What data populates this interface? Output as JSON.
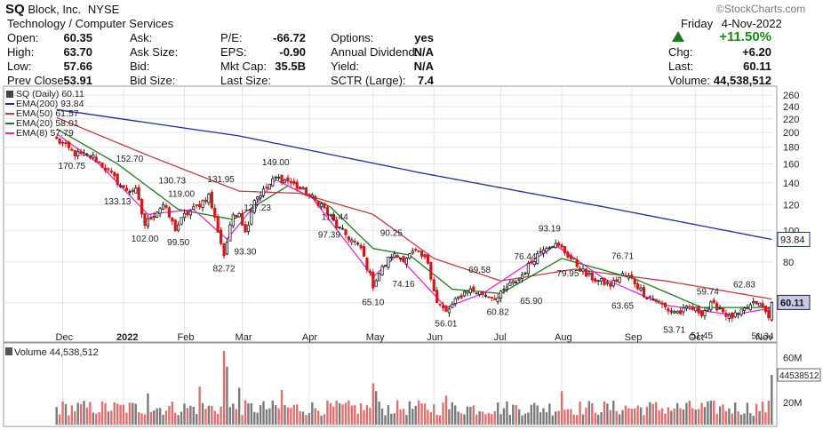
{
  "header": {
    "ticker": "SQ",
    "company": "Block, Inc.",
    "exchange": "NYSE",
    "sector": "Technology / Computer Services",
    "day": "Friday",
    "date": "4-Nov-2022",
    "logo": "©StockCharts.com",
    "change_pct": "+11.50%",
    "change_arrow": "up-arrow-icon",
    "fields": [
      {
        "label": "Open:",
        "value": "60.35"
      },
      {
        "label": "High:",
        "value": "63.70"
      },
      {
        "label": "Low:",
        "value": "57.66"
      },
      {
        "label": "Prev Close:",
        "value": "53.91"
      },
      {
        "label": "Ask:",
        "value": ""
      },
      {
        "label": "Ask Size:",
        "value": ""
      },
      {
        "label": "Bid:",
        "value": ""
      },
      {
        "label": "Bid Size:",
        "value": ""
      },
      {
        "label": "P/E:",
        "value": "-66.72"
      },
      {
        "label": "EPS:",
        "value": "-0.90"
      },
      {
        "label": "Mkt Cap:",
        "value": "35.5B"
      },
      {
        "label": "Last Size:",
        "value": ""
      },
      {
        "label": "Options:",
        "value": "yes"
      },
      {
        "label": "Annual Dividend:",
        "value": "N/A"
      },
      {
        "label": "Yield:",
        "value": "N/A"
      },
      {
        "label": "SCTR (Large):",
        "value": "7.4"
      },
      {
        "label": "Chg:",
        "value": "+6.20"
      },
      {
        "label": "Last:",
        "value": "60.11"
      },
      {
        "label": "Volume:",
        "value": "44,538,512"
      }
    ]
  },
  "colors": {
    "up": "#1a1a1a",
    "down": "#d01a1a",
    "ema200": "#1f2a9e",
    "ema50": "#c23a48",
    "ema20": "#1f7a1f",
    "ema8": "#e02ad0",
    "volume_up": "#7a7a7a",
    "volume_down": "#e07070",
    "last_box": "#c8c8e8",
    "grid": "#e4e4e4"
  },
  "chart_data": {
    "type": "candlestick",
    "scale": "log",
    "price_legend": [
      {
        "key": "price",
        "text": "SQ (Daily) 60.11"
      },
      {
        "key": "ema200",
        "text": "EMA(200) 93.84"
      },
      {
        "key": "ema50",
        "text": "EMA(50) 61.57"
      },
      {
        "key": "ema20",
        "text": "EMA(20) 58.01"
      },
      {
        "key": "ema8",
        "text": "EMA(8) 57.79"
      }
    ],
    "volume_legend": "Volume 44,538,512",
    "y_ticks": [
      60,
      80,
      100,
      120,
      140,
      160,
      180,
      200,
      220,
      240,
      260
    ],
    "ylim": [
      46,
      272
    ],
    "volume_ticks": [
      {
        "v": 20000000,
        "label": "20M"
      },
      {
        "v": 60000000,
        "label": "60M"
      }
    ],
    "volume_max": 70000000,
    "months": [
      "Dec",
      "2022",
      "Feb",
      "Mar",
      "Apr",
      "May",
      "Jun",
      "Jul",
      "Aug",
      "Sep",
      "Oct",
      "Nov"
    ],
    "month_index": [
      2,
      22,
      42,
      61,
      83,
      104,
      124,
      146,
      166,
      189,
      210,
      232
    ],
    "n_days": 236,
    "anchors": [
      {
        "i": 0,
        "p": 190
      },
      {
        "i": 6,
        "p": 172
      },
      {
        "i": 12,
        "p": 168
      },
      {
        "i": 17,
        "p": 152
      },
      {
        "i": 22,
        "p": 134
      },
      {
        "i": 26,
        "p": 132
      },
      {
        "i": 29,
        "p": 104
      },
      {
        "i": 31,
        "p": 110
      },
      {
        "i": 35,
        "p": 120
      },
      {
        "i": 39,
        "p": 101
      },
      {
        "i": 42,
        "p": 111
      },
      {
        "i": 46,
        "p": 118
      },
      {
        "i": 50,
        "p": 128
      },
      {
        "i": 53,
        "p": 100
      },
      {
        "i": 55,
        "p": 84
      },
      {
        "i": 58,
        "p": 112
      },
      {
        "i": 60,
        "p": 114
      },
      {
        "i": 62,
        "p": 98
      },
      {
        "i": 65,
        "p": 125
      },
      {
        "i": 68,
        "p": 132
      },
      {
        "i": 72,
        "p": 145
      },
      {
        "i": 76,
        "p": 142
      },
      {
        "i": 80,
        "p": 134
      },
      {
        "i": 83,
        "p": 128
      },
      {
        "i": 87,
        "p": 120
      },
      {
        "i": 92,
        "p": 103
      },
      {
        "i": 96,
        "p": 95
      },
      {
        "i": 100,
        "p": 88
      },
      {
        "i": 104,
        "p": 68
      },
      {
        "i": 106,
        "p": 74
      },
      {
        "i": 110,
        "p": 84
      },
      {
        "i": 114,
        "p": 82
      },
      {
        "i": 118,
        "p": 86
      },
      {
        "i": 122,
        "p": 80
      },
      {
        "i": 125,
        "p": 60
      },
      {
        "i": 128,
        "p": 56
      },
      {
        "i": 132,
        "p": 62
      },
      {
        "i": 135,
        "p": 66
      },
      {
        "i": 140,
        "p": 64
      },
      {
        "i": 145,
        "p": 62
      },
      {
        "i": 148,
        "p": 67
      },
      {
        "i": 152,
        "p": 71
      },
      {
        "i": 156,
        "p": 80
      },
      {
        "i": 160,
        "p": 89
      },
      {
        "i": 163,
        "p": 91
      },
      {
        "i": 166,
        "p": 88
      },
      {
        "i": 170,
        "p": 80
      },
      {
        "i": 174,
        "p": 73
      },
      {
        "i": 178,
        "p": 70
      },
      {
        "i": 182,
        "p": 68
      },
      {
        "i": 186,
        "p": 73
      },
      {
        "i": 189,
        "p": 71
      },
      {
        "i": 193,
        "p": 64
      },
      {
        "i": 197,
        "p": 61
      },
      {
        "i": 201,
        "p": 57
      },
      {
        "i": 205,
        "p": 56
      },
      {
        "i": 208,
        "p": 58
      },
      {
        "i": 212,
        "p": 56
      },
      {
        "i": 215,
        "p": 59
      },
      {
        "i": 218,
        "p": 58
      },
      {
        "i": 221,
        "p": 54
      },
      {
        "i": 224,
        "p": 55
      },
      {
        "i": 227,
        "p": 58
      },
      {
        "i": 230,
        "p": 60
      },
      {
        "i": 232,
        "p": 58
      },
      {
        "i": 234,
        "p": 53.9
      },
      {
        "i": 235,
        "p": 60.11
      }
    ],
    "ema_anchors": {
      "ema200": [
        {
          "i": 0,
          "p": 235
        },
        {
          "i": 60,
          "p": 195
        },
        {
          "i": 120,
          "p": 150
        },
        {
          "i": 180,
          "p": 118
        },
        {
          "i": 235,
          "p": 93.84
        }
      ],
      "ema50": [
        {
          "i": 0,
          "p": 222
        },
        {
          "i": 30,
          "p": 170
        },
        {
          "i": 60,
          "p": 132
        },
        {
          "i": 80,
          "p": 130
        },
        {
          "i": 104,
          "p": 112
        },
        {
          "i": 124,
          "p": 82
        },
        {
          "i": 146,
          "p": 70
        },
        {
          "i": 170,
          "p": 76
        },
        {
          "i": 200,
          "p": 70
        },
        {
          "i": 235,
          "p": 61.57
        }
      ],
      "ema20": [
        {
          "i": 0,
          "p": 205
        },
        {
          "i": 20,
          "p": 160
        },
        {
          "i": 40,
          "p": 116
        },
        {
          "i": 58,
          "p": 108
        },
        {
          "i": 76,
          "p": 137
        },
        {
          "i": 90,
          "p": 118
        },
        {
          "i": 104,
          "p": 88
        },
        {
          "i": 116,
          "p": 84
        },
        {
          "i": 130,
          "p": 66
        },
        {
          "i": 146,
          "p": 64
        },
        {
          "i": 166,
          "p": 82
        },
        {
          "i": 190,
          "p": 71
        },
        {
          "i": 212,
          "p": 58
        },
        {
          "i": 235,
          "p": 58.01
        }
      ],
      "ema8": [
        {
          "i": 0,
          "p": 198
        },
        {
          "i": 14,
          "p": 160
        },
        {
          "i": 30,
          "p": 112
        },
        {
          "i": 45,
          "p": 116
        },
        {
          "i": 56,
          "p": 94
        },
        {
          "i": 72,
          "p": 143
        },
        {
          "i": 84,
          "p": 126
        },
        {
          "i": 104,
          "p": 72
        },
        {
          "i": 112,
          "p": 84
        },
        {
          "i": 128,
          "p": 58
        },
        {
          "i": 140,
          "p": 64
        },
        {
          "i": 164,
          "p": 90
        },
        {
          "i": 180,
          "p": 71
        },
        {
          "i": 200,
          "p": 59
        },
        {
          "i": 222,
          "p": 55
        },
        {
          "i": 235,
          "p": 57.79
        }
      ]
    },
    "annotations": [
      {
        "i": 5,
        "v": 170.75,
        "label": "170.75",
        "pos": "below"
      },
      {
        "i": 24,
        "v": 152.7,
        "label": "152.70",
        "pos": "above"
      },
      {
        "i": 20,
        "v": 133.13,
        "label": "133.13",
        "pos": "below"
      },
      {
        "i": 38,
        "v": 130.73,
        "label": "130.73",
        "pos": "above"
      },
      {
        "i": 41,
        "v": 119.0,
        "label": "119.00",
        "pos": "above"
      },
      {
        "i": 54,
        "v": 131.95,
        "label": "131.95",
        "pos": "above"
      },
      {
        "i": 29,
        "v": 102.0,
        "label": "102.00",
        "pos": "below"
      },
      {
        "i": 40,
        "v": 99.5,
        "label": "99.50",
        "pos": "below"
      },
      {
        "i": 55,
        "v": 82.72,
        "label": "82.72",
        "pos": "below"
      },
      {
        "i": 62,
        "v": 93.3,
        "label": "93.30",
        "pos": "below"
      },
      {
        "i": 66,
        "v": 127.23,
        "label": "127.23",
        "pos": "below"
      },
      {
        "i": 72,
        "v": 149.0,
        "label": "149.00",
        "pos": "above"
      },
      {
        "i": 85,
        "v": 110.44,
        "label": "110.44",
        "pos": "right"
      },
      {
        "i": 96,
        "v": 97.39,
        "label": "97.39",
        "pos": "left"
      },
      {
        "i": 104,
        "v": 65.1,
        "label": "65.10",
        "pos": "below"
      },
      {
        "i": 110,
        "v": 90.25,
        "label": "90.25",
        "pos": "above"
      },
      {
        "i": 114,
        "v": 74.16,
        "label": "74.16",
        "pos": "below"
      },
      {
        "i": 128,
        "v": 56.01,
        "label": "56.01",
        "pos": "below"
      },
      {
        "i": 145,
        "v": 60.82,
        "label": "60.82",
        "pos": "below"
      },
      {
        "i": 139,
        "v": 69.58,
        "label": "69.58",
        "pos": "above"
      },
      {
        "i": 154,
        "v": 76.44,
        "label": "76.44",
        "pos": "above"
      },
      {
        "i": 156,
        "v": 65.9,
        "label": "65.90",
        "pos": "below"
      },
      {
        "i": 162,
        "v": 93.19,
        "label": "93.19",
        "pos": "above"
      },
      {
        "i": 168,
        "v": 79.95,
        "label": "79.95",
        "pos": "below"
      },
      {
        "i": 186,
        "v": 76.71,
        "label": "76.71",
        "pos": "above"
      },
      {
        "i": 186,
        "v": 63.65,
        "label": "63.65",
        "pos": "below"
      },
      {
        "i": 203,
        "v": 53.71,
        "label": "53.71",
        "pos": "below"
      },
      {
        "i": 214,
        "v": 59.74,
        "label": "59.74",
        "pos": "above"
      },
      {
        "i": 212,
        "v": 51.45,
        "label": "51.45",
        "pos": "below"
      },
      {
        "i": 226,
        "v": 62.83,
        "label": "62.83",
        "pos": "above"
      },
      {
        "i": 232,
        "v": 51.34,
        "label": "51.34",
        "pos": "below"
      }
    ],
    "right_labels": [
      {
        "v": 93.84,
        "label": "93.84",
        "color": "ema200"
      },
      {
        "v": 60.11,
        "label": "60.11",
        "color": "last"
      }
    ],
    "volume_last_label": "44538512",
    "volume_spikes": [
      {
        "i": 55,
        "v": 66000000
      },
      {
        "i": 56,
        "v": 52000000
      },
      {
        "i": 47,
        "v": 34000000
      },
      {
        "i": 74,
        "v": 31000000
      },
      {
        "i": 104,
        "v": 37000000
      },
      {
        "i": 105,
        "v": 30000000
      },
      {
        "i": 60,
        "v": 33000000
      },
      {
        "i": 166,
        "v": 30000000
      },
      {
        "i": 235,
        "v": 44538512
      },
      {
        "i": 128,
        "v": 26000000
      },
      {
        "i": 30,
        "v": 28000000
      }
    ]
  }
}
